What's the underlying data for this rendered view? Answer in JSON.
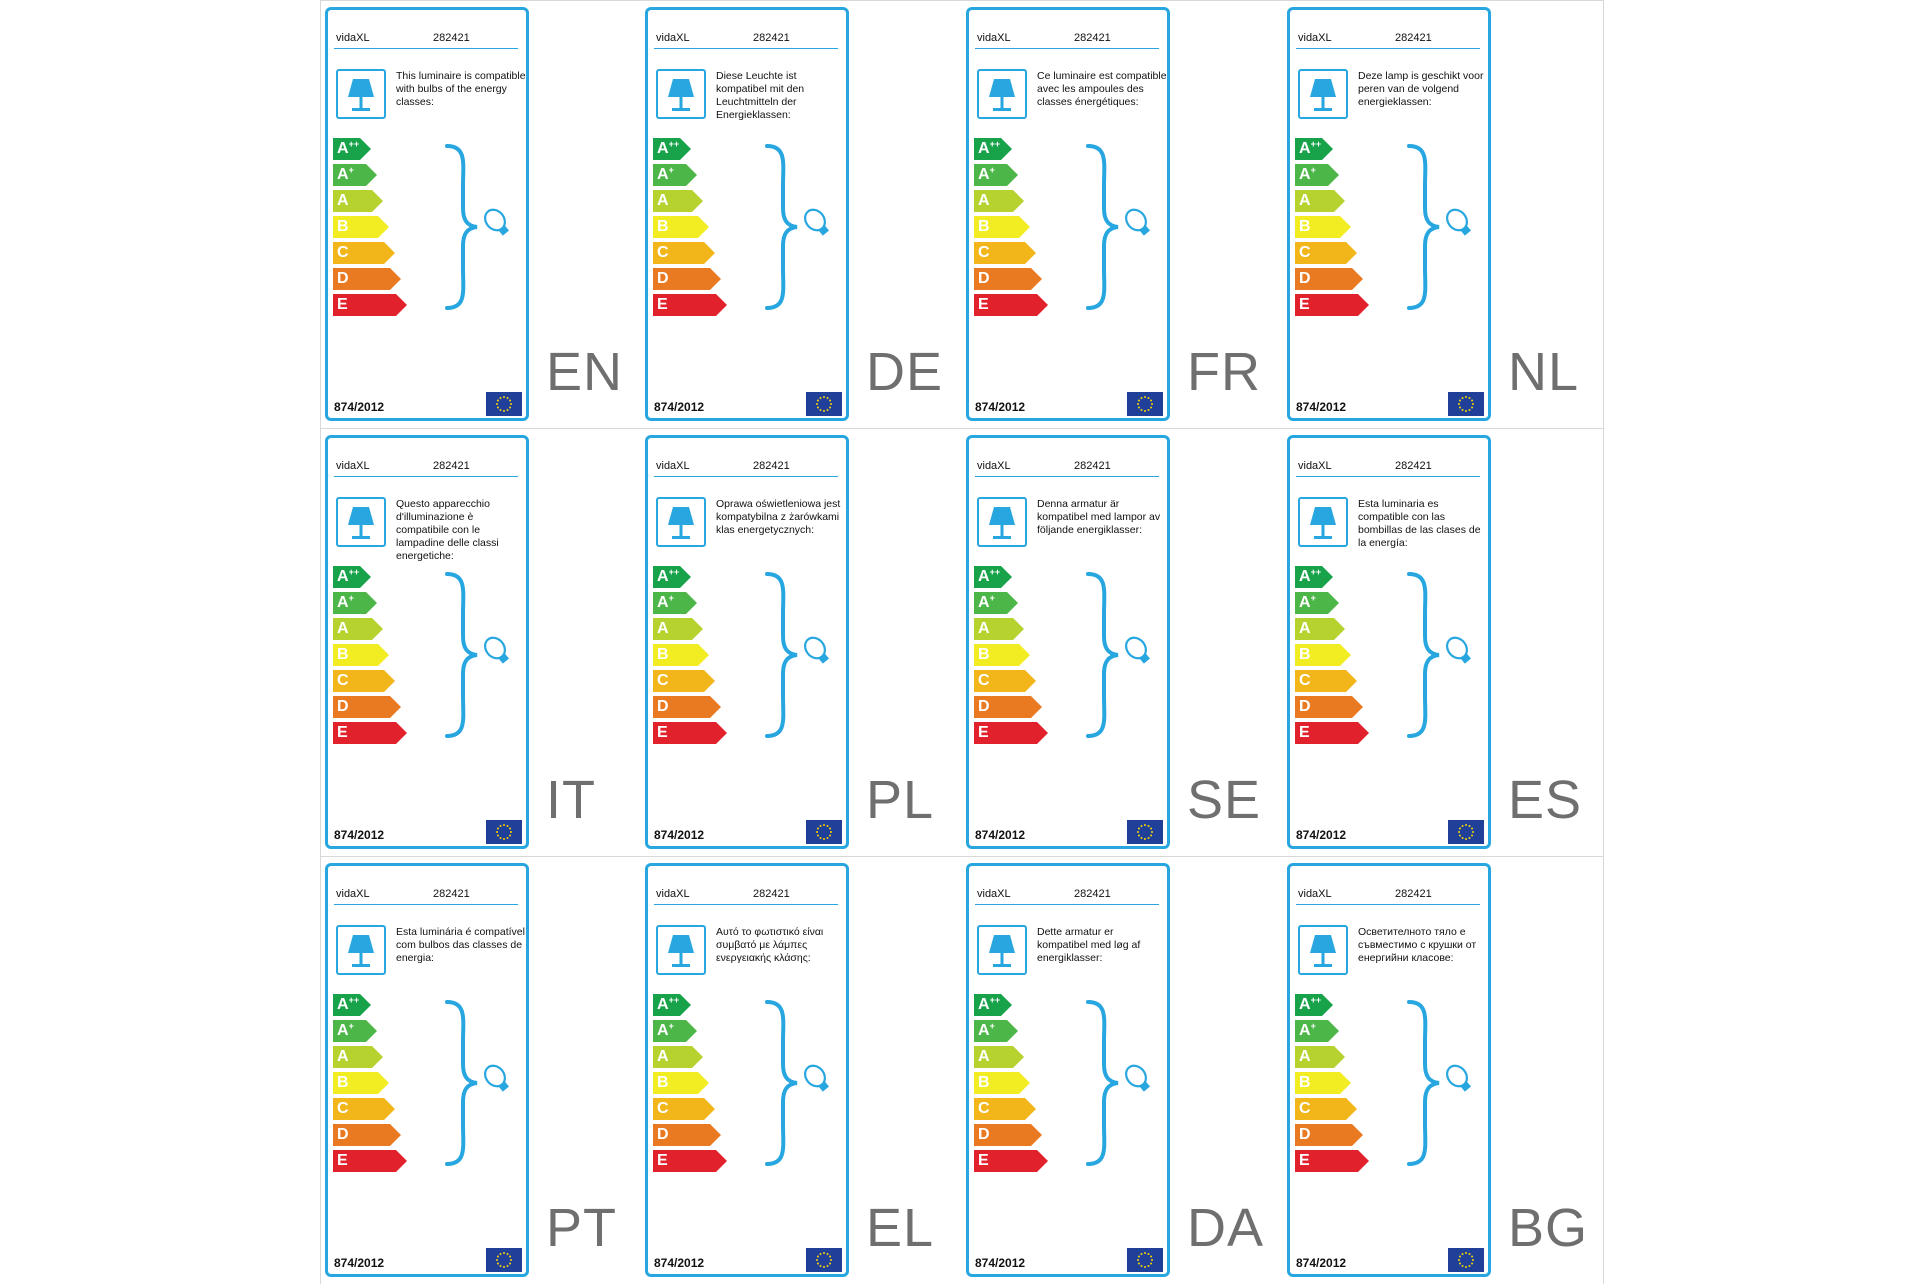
{
  "colors": {
    "frame": "#27a6df",
    "A++": "#18a24a",
    "A+": "#4cb748",
    "A": "#b6d22f",
    "B": "#f2ec22",
    "C": "#f2b61b",
    "D": "#e97a22",
    "E": "#e1222c"
  },
  "energy_classes": [
    {
      "letter": "A",
      "sup": "++",
      "color": "#18a24a"
    },
    {
      "letter": "A",
      "sup": "+",
      "color": "#4cb748"
    },
    {
      "letter": "A",
      "sup": "",
      "color": "#b6d22f"
    },
    {
      "letter": "B",
      "sup": "",
      "color": "#f2ec22"
    },
    {
      "letter": "C",
      "sup": "",
      "color": "#f2b61b"
    },
    {
      "letter": "D",
      "sup": "",
      "color": "#e97a22"
    },
    {
      "letter": "E",
      "sup": "",
      "color": "#e1222c"
    }
  ],
  "icons": {
    "lamp": "table-lamp-icon",
    "bulb": "light-bulb-icon",
    "flag": "eu-flag-icon",
    "brace": "curly-brace-icon"
  },
  "labels": [
    {
      "lang": "EN",
      "brand": "vidaXL",
      "model": "282421",
      "regulation": "874/2012",
      "text": "This luminaire is compatible with bulbs of the energy classes:"
    },
    {
      "lang": "DE",
      "brand": "vidaXL",
      "model": "282421",
      "regulation": "874/2012",
      "text": "Diese Leuchte ist kompatibel mit den Leuchtmitteln der Energieklassen:"
    },
    {
      "lang": "FR",
      "brand": "vidaXL",
      "model": "282421",
      "regulation": "874/2012",
      "text": "Ce luminaire est compatible avec les ampoules des classes énergétiques:"
    },
    {
      "lang": "NL",
      "brand": "vidaXL",
      "model": "282421",
      "regulation": "874/2012",
      "text": "Deze lamp is geschikt voor peren van de volgend energieklassen:"
    },
    {
      "lang": "IT",
      "brand": "vidaXL",
      "model": "282421",
      "regulation": "874/2012",
      "text": "Questo apparecchio d'illuminazione è compatibile con le lampadine delle classi energetiche:"
    },
    {
      "lang": "PL",
      "brand": "vidaXL",
      "model": "282421",
      "regulation": "874/2012",
      "text": "Oprawa oświetleniowa jest kompatybilna z żarówkami klas energetycznych:"
    },
    {
      "lang": "SE",
      "brand": "vidaXL",
      "model": "282421",
      "regulation": "874/2012",
      "text": "Denna armatur är kompatibel med lampor av följande energiklasser:"
    },
    {
      "lang": "ES",
      "brand": "vidaXL",
      "model": "282421",
      "regulation": "874/2012",
      "text": "Esta luminaria es compatible con las bombillas de las clases de la energía:"
    },
    {
      "lang": "PT",
      "brand": "vidaXL",
      "model": "282421",
      "regulation": "874/2012",
      "text": "Esta luminária é compatível com bulbos das classes de energia:"
    },
    {
      "lang": "EL",
      "brand": "vidaXL",
      "model": "282421",
      "regulation": "874/2012",
      "text": "Αυτό το φωτιστικό είναι συμβατό με λάμπες ενεργειακής κλάσης:"
    },
    {
      "lang": "DA",
      "brand": "vidaXL",
      "model": "282421",
      "regulation": "874/2012",
      "text": "Dette armatur er kompatibel med løg af energiklasser:"
    },
    {
      "lang": "BG",
      "brand": "vidaXL",
      "model": "282421",
      "regulation": "874/2012",
      "text": "Осветителното тяло е съвместимо с крушки от енергийни класове:"
    }
  ]
}
